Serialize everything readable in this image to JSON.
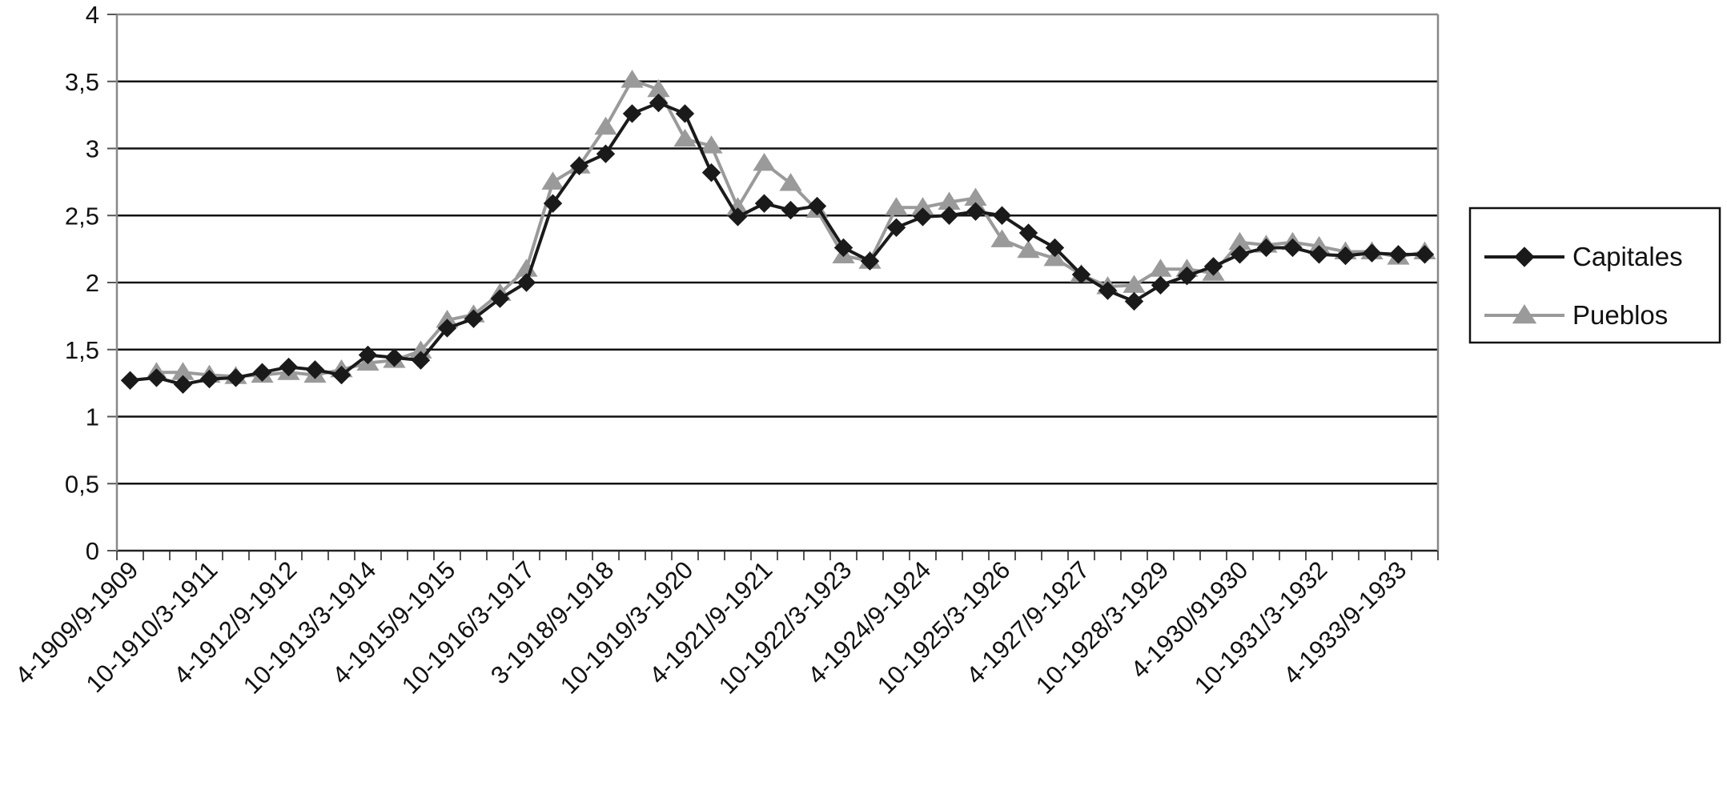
{
  "chart_data": {
    "type": "line",
    "title": "",
    "xlabel": "",
    "ylabel": "",
    "ylim": [
      0,
      4
    ],
    "y_ticks": [
      "0",
      "0,5",
      "1",
      "1,5",
      "2",
      "2,5",
      "3",
      "3,5",
      "4"
    ],
    "x_tick_labels": [
      "4-1909/9-1909",
      "10-1910/3-1911",
      "4-1912/9-1912",
      "10-1913/3-1914",
      "4-1915/9-1915",
      "10-1916/3-1917",
      "3-1918/9-1918",
      "10-1919/3-1920",
      "4-1921/9-1921",
      "10-1922/3-1923",
      "4-1924/9-1924",
      "10-1925/3-1926",
      "4-1927/9-1927",
      "10-1928/3-1929",
      "4-1930/91930",
      "10-1931/3-1932",
      "4-1933/9-1933"
    ],
    "num_periods": 50,
    "grid": "horizontal",
    "legend_position": "right",
    "series": [
      {
        "name": "Capitales",
        "color": "#1a1a1a",
        "marker": "diamond",
        "values": [
          1.27,
          1.29,
          1.24,
          1.28,
          1.29,
          1.33,
          1.37,
          1.35,
          1.31,
          1.46,
          1.44,
          1.42,
          1.66,
          1.73,
          1.88,
          2.0,
          2.59,
          2.87,
          2.96,
          3.26,
          3.34,
          3.26,
          2.82,
          2.49,
          2.59,
          2.54,
          2.57,
          2.26,
          2.16,
          2.41,
          2.49,
          2.5,
          2.53,
          2.5,
          2.37,
          2.26,
          2.06,
          1.94,
          1.86,
          1.98,
          2.05,
          2.12,
          2.21,
          2.26,
          2.26,
          2.21,
          2.2,
          2.22,
          2.21,
          2.21
        ]
      },
      {
        "name": "Pueblos",
        "color": "#9a9a9a",
        "marker": "triangle",
        "values": [
          null,
          1.33,
          1.33,
          1.31,
          1.3,
          1.31,
          1.33,
          1.31,
          1.35,
          1.4,
          1.42,
          1.49,
          1.72,
          1.76,
          1.92,
          2.1,
          2.75,
          2.87,
          3.16,
          3.51,
          3.44,
          3.07,
          3.02,
          2.56,
          2.89,
          2.74,
          2.54,
          2.2,
          2.16,
          2.56,
          2.56,
          2.6,
          2.63,
          2.32,
          2.24,
          2.18,
          2.06,
          1.97,
          1.98,
          2.1,
          2.1,
          2.07,
          2.3,
          2.28,
          2.3,
          2.27,
          2.23,
          2.23,
          2.19,
          2.23
        ]
      }
    ]
  }
}
